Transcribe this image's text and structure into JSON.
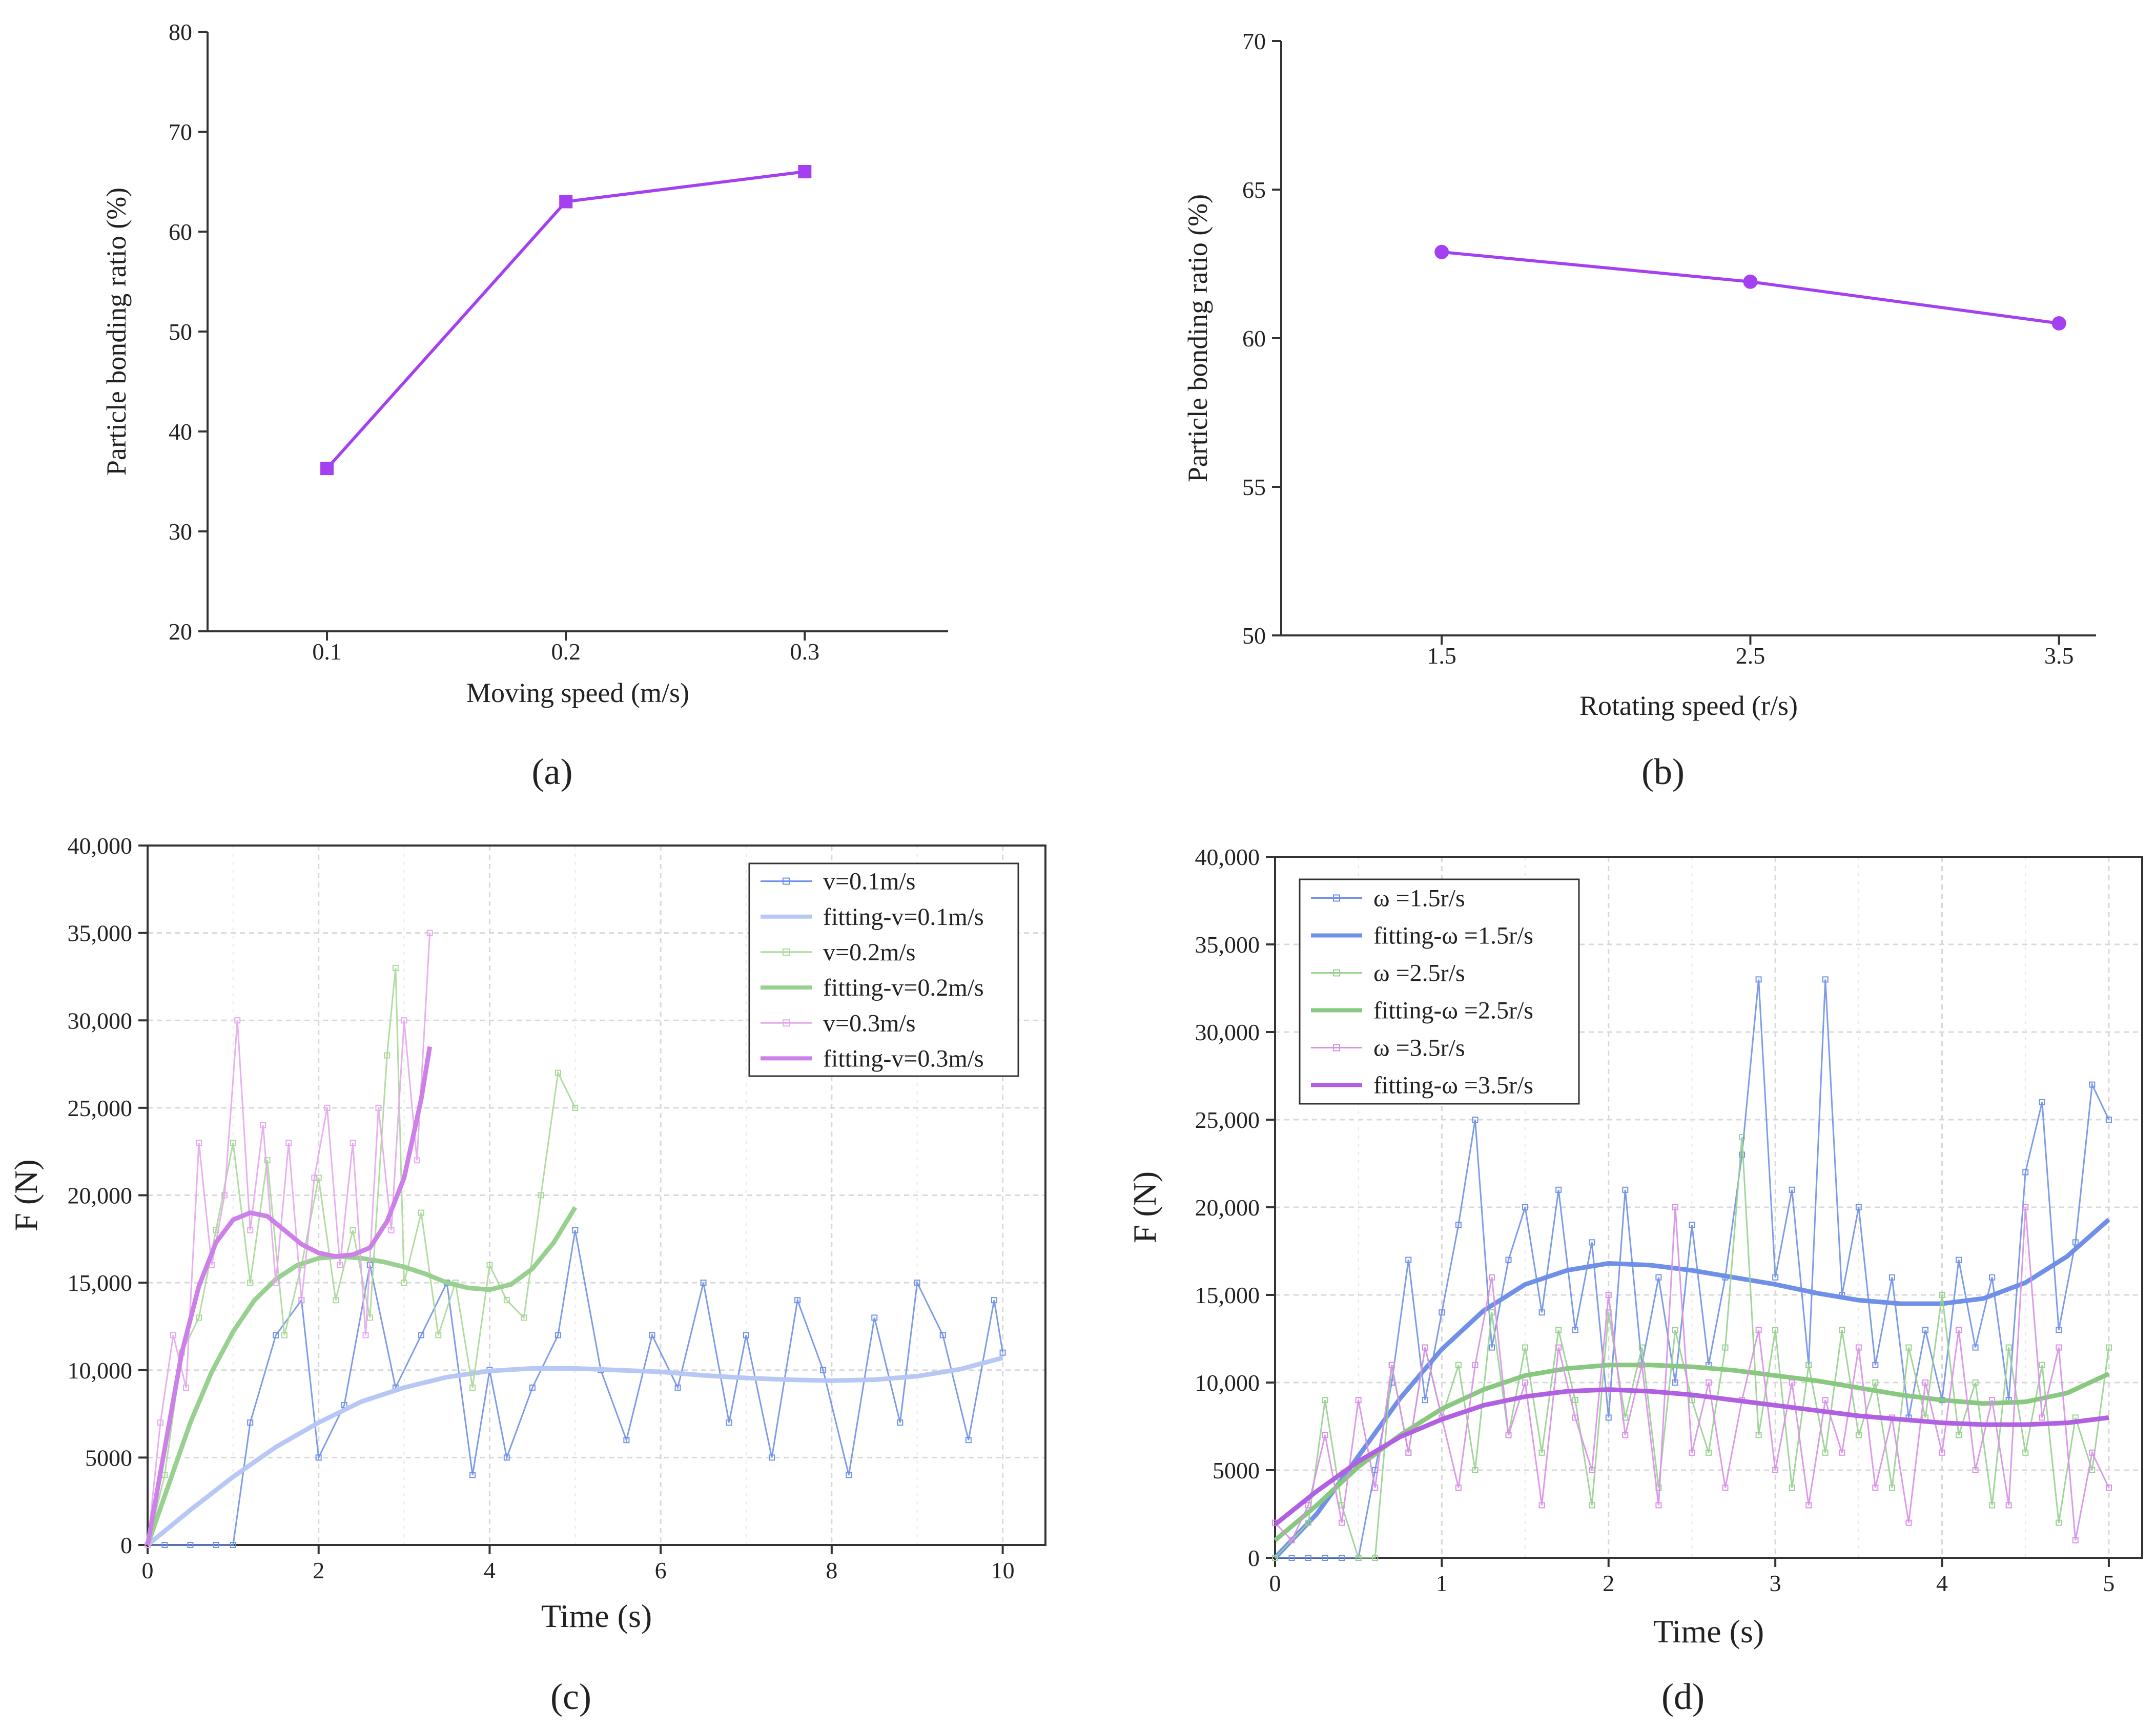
{
  "charts": [
    {
      "id": "a",
      "panel_label": "(a)",
      "chart_data": {
        "type": "line",
        "xlabel": "Moving speed (m/s)",
        "ylabel": "Particle bonding ratio (%)",
        "x": [
          0.1,
          0.2,
          0.3
        ],
        "x_ticks": [
          "0.1",
          "0.2",
          "0.3"
        ],
        "y_ticks": [
          "20",
          "30",
          "40",
          "50",
          "60",
          "70",
          "80"
        ],
        "ylim": [
          20,
          80
        ],
        "xlim": [
          0.05,
          0.36
        ],
        "grid": false,
        "series": [
          {
            "values": [
              36.3,
              63.0,
              66.0
            ],
            "marker": "square",
            "color": "#a540f0"
          }
        ]
      }
    },
    {
      "id": "b",
      "panel_label": "(b)",
      "chart_data": {
        "type": "line",
        "xlabel": "Rotating speed (r/s)",
        "ylabel": "Particle bonding ratio (%)",
        "x": [
          1.5,
          2.5,
          3.5
        ],
        "x_ticks": [
          "1.5",
          "2.5",
          "3.5"
        ],
        "y_ticks": [
          "50",
          "55",
          "60",
          "65",
          "70"
        ],
        "ylim": [
          50,
          70
        ],
        "xlim": [
          0.98,
          3.62
        ],
        "grid": false,
        "series": [
          {
            "values": [
              62.9,
              61.9,
              60.5
            ],
            "marker": "circle",
            "color": "#a540f0"
          }
        ]
      }
    },
    {
      "id": "c",
      "panel_label": "(c)",
      "chart_data": {
        "type": "line",
        "xlabel": "Time (s)",
        "ylabel": "F (N)",
        "xlim": [
          0,
          10.5
        ],
        "ylim": [
          0,
          40000
        ],
        "x_ticks": [
          "0",
          "2",
          "4",
          "6",
          "8",
          "10"
        ],
        "y_ticks": [
          "0",
          "5000",
          "10,000",
          "15,000",
          "20,000",
          "25,000",
          "30,000",
          "35,000",
          "40,000"
        ],
        "grid": true,
        "legend_position": "top-right",
        "series": [
          {
            "name": "v=0.1m/s",
            "kind": "raw",
            "color": "#7090e8",
            "x": [
              0,
              0.2,
              0.5,
              0.8,
              1.0,
              1.2,
              1.5,
              1.8,
              2.0,
              2.3,
              2.6,
              2.9,
              3.2,
              3.5,
              3.8,
              4.0,
              4.2,
              4.5,
              4.8,
              5.0,
              5.3,
              5.6,
              5.9,
              6.2,
              6.5,
              6.8,
              7.0,
              7.3,
              7.6,
              7.9,
              8.2,
              8.5,
              8.8,
              9.0,
              9.3,
              9.6,
              9.9,
              10.0
            ],
            "y": [
              0,
              0,
              0,
              0,
              0,
              7000,
              12000,
              14000,
              5000,
              8000,
              16000,
              9000,
              12000,
              15000,
              4000,
              10000,
              5000,
              9000,
              12000,
              18000,
              10000,
              6000,
              12000,
              9000,
              15000,
              7000,
              12000,
              5000,
              14000,
              10000,
              4000,
              13000,
              7000,
              15000,
              12000,
              6000,
              14000,
              11000
            ]
          },
          {
            "name": "fitting-v=0.1m/s",
            "kind": "fit",
            "color": "#b8c8f4",
            "x": [
              0,
              0.5,
              1,
              1.5,
              2,
              2.5,
              3,
              3.5,
              4,
              4.5,
              5,
              5.5,
              6,
              6.5,
              7,
              7.5,
              8,
              8.5,
              9,
              9.5,
              10
            ],
            "y": [
              0,
              2000,
              3900,
              5600,
              7000,
              8200,
              9000,
              9600,
              9950,
              10100,
              10100,
              10000,
              9900,
              9700,
              9550,
              9450,
              9400,
              9450,
              9650,
              10050,
              10700
            ]
          },
          {
            "name": "v=0.2m/s",
            "kind": "raw",
            "color": "#a8d898",
            "x": [
              0,
              0.2,
              0.4,
              0.6,
              0.8,
              1.0,
              1.2,
              1.4,
              1.6,
              1.8,
              2.0,
              2.2,
              2.4,
              2.6,
              2.8,
              2.9,
              3.0,
              3.2,
              3.4,
              3.6,
              3.8,
              4.0,
              4.2,
              4.4,
              4.6,
              4.8,
              5.0
            ],
            "y": [
              0,
              4000,
              11000,
              13000,
              18000,
              23000,
              15000,
              22000,
              12000,
              16000,
              21000,
              14000,
              18000,
              13000,
              28000,
              33000,
              15000,
              19000,
              12000,
              15000,
              9000,
              16000,
              14000,
              13000,
              20000,
              27000,
              25000
            ]
          },
          {
            "name": "fitting-v=0.2m/s",
            "kind": "fit",
            "color": "#98d090",
            "x": [
              0,
              0.25,
              0.5,
              0.75,
              1,
              1.25,
              1.5,
              1.75,
              2,
              2.25,
              2.5,
              2.75,
              3,
              3.25,
              3.5,
              3.75,
              4,
              4.25,
              4.5,
              4.75,
              5
            ],
            "y": [
              0,
              3500,
              7000,
              9900,
              12200,
              14000,
              15200,
              16000,
              16400,
              16500,
              16400,
              16200,
              15900,
              15500,
              15000,
              14700,
              14600,
              14900,
              15800,
              17300,
              19300
            ]
          },
          {
            "name": "v=0.3m/s",
            "kind": "raw",
            "color": "#e4a8ec",
            "x": [
              0,
              0.15,
              0.3,
              0.45,
              0.6,
              0.75,
              0.9,
              1.05,
              1.2,
              1.35,
              1.5,
              1.65,
              1.8,
              1.95,
              2.1,
              2.25,
              2.4,
              2.55,
              2.7,
              2.85,
              3.0,
              3.15,
              3.3
            ],
            "y": [
              0,
              7000,
              12000,
              9000,
              23000,
              16000,
              20000,
              30000,
              18000,
              24000,
              15000,
              23000,
              14000,
              21000,
              25000,
              16000,
              23000,
              12000,
              25000,
              18000,
              30000,
              22000,
              35000
            ]
          },
          {
            "name": "fitting-v=0.3m/s",
            "kind": "fit",
            "color": "#cc80e8",
            "x": [
              0,
              0.2,
              0.4,
              0.6,
              0.8,
              1,
              1.2,
              1.4,
              1.6,
              1.8,
              2,
              2.2,
              2.4,
              2.6,
              2.8,
              3,
              3.2,
              3.3
            ],
            "y": [
              0,
              5500,
              11000,
              14800,
              17300,
              18600,
              19000,
              18800,
              18000,
              17200,
              16700,
              16500,
              16600,
              17000,
              18500,
              21000,
              25500,
              28500
            ]
          }
        ]
      }
    },
    {
      "id": "d",
      "panel_label": "(d)",
      "chart_data": {
        "type": "line",
        "xlabel": "Time (s)",
        "ylabel": "F (N)",
        "xlim": [
          0,
          5.2
        ],
        "ylim": [
          0,
          40000
        ],
        "x_ticks": [
          "0",
          "1",
          "2",
          "3",
          "4",
          "5"
        ],
        "y_ticks": [
          "0",
          "5000",
          "10,000",
          "15,000",
          "20,000",
          "25,000",
          "30,000",
          "35,000",
          "40,000"
        ],
        "grid": true,
        "legend_position": "top-left",
        "series": [
          {
            "name": "ω =1.5r/s",
            "kind": "raw",
            "color": "#7090e8",
            "x": [
              0,
              0.1,
              0.2,
              0.3,
              0.4,
              0.5,
              0.6,
              0.7,
              0.8,
              0.9,
              1.0,
              1.1,
              1.2,
              1.3,
              1.4,
              1.5,
              1.6,
              1.7,
              1.8,
              1.9,
              2.0,
              2.1,
              2.2,
              2.3,
              2.4,
              2.5,
              2.6,
              2.7,
              2.8,
              2.9,
              3.0,
              3.1,
              3.2,
              3.3,
              3.4,
              3.5,
              3.6,
              3.7,
              3.8,
              3.9,
              4.0,
              4.1,
              4.2,
              4.3,
              4.4,
              4.5,
              4.6,
              4.7,
              4.8,
              4.9,
              5.0
            ],
            "y": [
              0,
              0,
              0,
              0,
              0,
              0,
              5000,
              10000,
              17000,
              9000,
              14000,
              19000,
              25000,
              12000,
              17000,
              20000,
              14000,
              21000,
              13000,
              18000,
              8000,
              21000,
              11000,
              16000,
              10000,
              19000,
              11000,
              16000,
              23000,
              33000,
              16000,
              21000,
              11000,
              33000,
              15000,
              20000,
              11000,
              16000,
              8000,
              13000,
              9000,
              17000,
              12000,
              16000,
              9000,
              22000,
              26000,
              13000,
              18000,
              27000,
              25000
            ]
          },
          {
            "name": "fitting-ω =1.5r/s",
            "kind": "fit",
            "color": "#7090e8",
            "x": [
              0,
              0.25,
              0.5,
              0.75,
              1,
              1.25,
              1.5,
              1.75,
              2,
              2.25,
              2.5,
              2.75,
              3,
              3.25,
              3.5,
              3.75,
              4,
              4.25,
              4.5,
              4.75,
              5
            ],
            "y": [
              0,
              2500,
              5800,
              9100,
              11900,
              14100,
              15600,
              16400,
              16800,
              16700,
              16400,
              16000,
              15600,
              15100,
              14700,
              14500,
              14500,
              14800,
              15700,
              17200,
              19300
            ]
          },
          {
            "name": "ω =2.5r/s",
            "kind": "raw",
            "color": "#98d090",
            "x": [
              0,
              0.1,
              0.2,
              0.3,
              0.4,
              0.5,
              0.6,
              0.7,
              0.8,
              0.9,
              1.0,
              1.1,
              1.2,
              1.3,
              1.4,
              1.5,
              1.6,
              1.7,
              1.8,
              1.9,
              2.0,
              2.1,
              2.2,
              2.3,
              2.4,
              2.5,
              2.6,
              2.7,
              2.8,
              2.9,
              3.0,
              3.1,
              3.2,
              3.3,
              3.4,
              3.5,
              3.6,
              3.7,
              3.8,
              3.9,
              4.0,
              4.1,
              4.2,
              4.3,
              4.4,
              4.5,
              4.6,
              4.7,
              4.8,
              4.9,
              5.0
            ],
            "y": [
              0,
              1000,
              2000,
              9000,
              3000,
              0,
              0,
              11000,
              6000,
              12000,
              8000,
              11000,
              5000,
              14000,
              7000,
              12000,
              6000,
              13000,
              9000,
              3000,
              14000,
              8000,
              12000,
              4000,
              13000,
              9000,
              6000,
              12000,
              24000,
              7000,
              13000,
              4000,
              11000,
              6000,
              13000,
              7000,
              10000,
              4000,
              12000,
              8000,
              15000,
              7000,
              10000,
              3000,
              12000,
              6000,
              11000,
              2000,
              8000,
              5000,
              12000
            ]
          },
          {
            "name": "fitting-ω =2.5r/s",
            "kind": "fit",
            "color": "#88c880",
            "x": [
              0,
              0.25,
              0.5,
              0.75,
              1,
              1.25,
              1.5,
              1.75,
              2,
              2.25,
              2.5,
              2.75,
              3,
              3.25,
              3.5,
              3.75,
              4,
              4.25,
              4.5,
              4.75,
              5
            ],
            "y": [
              1000,
              3000,
              5200,
              7000,
              8500,
              9600,
              10400,
              10800,
              11000,
              11000,
              10900,
              10700,
              10400,
              10100,
              9700,
              9300,
              9000,
              8800,
              8900,
              9400,
              10500
            ]
          },
          {
            "name": "ω =3.5r/s",
            "kind": "raw",
            "color": "#d890e8",
            "x": [
              0,
              0.1,
              0.2,
              0.3,
              0.4,
              0.5,
              0.6,
              0.7,
              0.8,
              0.9,
              1.0,
              1.1,
              1.2,
              1.3,
              1.4,
              1.5,
              1.6,
              1.7,
              1.8,
              1.9,
              2.0,
              2.1,
              2.2,
              2.3,
              2.4,
              2.5,
              2.6,
              2.7,
              2.8,
              2.9,
              3.0,
              3.1,
              3.2,
              3.3,
              3.4,
              3.5,
              3.6,
              3.7,
              3.8,
              3.9,
              4.0,
              4.1,
              4.2,
              4.3,
              4.4,
              4.5,
              4.6,
              4.7,
              4.8,
              4.9,
              5.0
            ],
            "y": [
              2000,
              1000,
              3000,
              7000,
              2000,
              9000,
              4000,
              11000,
              6000,
              12000,
              8000,
              4000,
              11000,
              16000,
              7000,
              10000,
              3000,
              12000,
              8000,
              5000,
              15000,
              7000,
              11000,
              3000,
              20000,
              6000,
              10000,
              4000,
              9000,
              13000,
              5000,
              10000,
              3000,
              9000,
              6000,
              12000,
              4000,
              8000,
              2000,
              10000,
              6000,
              13000,
              5000,
              9000,
              3000,
              20000,
              8000,
              12000,
              1000,
              6000,
              4000
            ]
          },
          {
            "name": "fitting-ω =3.5r/s",
            "kind": "fit",
            "color": "#b060e0",
            "x": [
              0,
              0.25,
              0.5,
              0.75,
              1,
              1.25,
              1.5,
              1.75,
              2,
              2.25,
              2.5,
              2.75,
              3,
              3.25,
              3.5,
              3.75,
              4,
              4.25,
              4.5,
              4.75,
              5
            ],
            "y": [
              1900,
              3800,
              5500,
              6900,
              7900,
              8700,
              9200,
              9500,
              9600,
              9500,
              9300,
              9000,
              8700,
              8400,
              8100,
              7900,
              7700,
              7600,
              7600,
              7700,
              8000
            ]
          }
        ]
      }
    }
  ]
}
